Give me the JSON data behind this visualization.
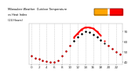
{
  "title": "Milwaukee Weather  Outdoor Temperature",
  "subtitle": "vs Heat Index",
  "subtitle2": "(24 Hours)",
  "background": "#ffffff",
  "temp_color": "#000000",
  "heat_color": "#ff0000",
  "legend_temp_color": "#ffa500",
  "legend_heat_color": "#ff0000",
  "hours": [
    0,
    1,
    2,
    3,
    4,
    5,
    6,
    7,
    8,
    9,
    10,
    11,
    12,
    13,
    14,
    15,
    16,
    17,
    18,
    19,
    20,
    21,
    22,
    23
  ],
  "temp_values": [
    46,
    44,
    43,
    42,
    41,
    40,
    40,
    42,
    46,
    51,
    56,
    61,
    65,
    68,
    70,
    69,
    67,
    65,
    62,
    59,
    56,
    53,
    50,
    48
  ],
  "heat_values": [
    46,
    44,
    43,
    42,
    41,
    40,
    40,
    42,
    46,
    51,
    56,
    64,
    68,
    72,
    74,
    74,
    73,
    70,
    66,
    61,
    56,
    53,
    50,
    48
  ],
  "ylim": [
    38,
    78
  ],
  "xlim": [
    -0.5,
    23.5
  ],
  "grid_positions": [
    0,
    2,
    4,
    6,
    8,
    10,
    12,
    14,
    16,
    18,
    20,
    22
  ],
  "xtick_labels": [
    "0",
    "2",
    "4",
    "6",
    "8",
    "10",
    "12",
    "14",
    "16",
    "18",
    "20",
    "22"
  ],
  "ytick_positions": [
    40,
    50,
    60,
    70
  ],
  "ytick_labels": [
    "40",
    "50",
    "60",
    "70"
  ],
  "heat_line_start": 11,
  "heat_line_end": 18
}
